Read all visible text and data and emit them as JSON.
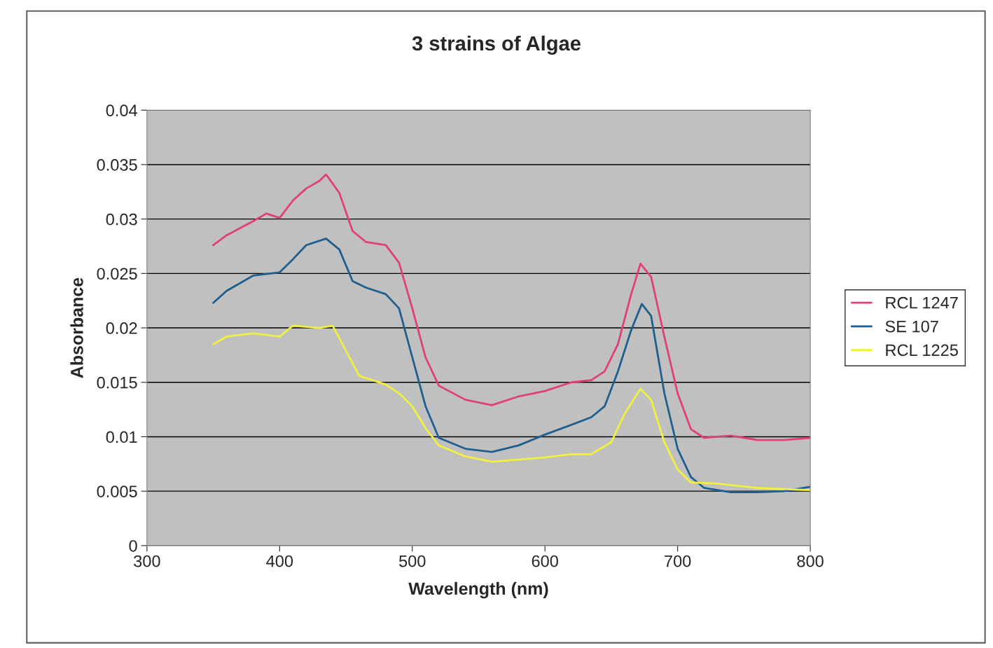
{
  "chart_data": {
    "type": "line",
    "title": "3 strains of Algae",
    "xlabel": "Wavelength (nm)",
    "ylabel": "Absorbance",
    "xlim": [
      300,
      800
    ],
    "xticks": [
      300,
      400,
      500,
      600,
      700,
      800
    ],
    "ylim": [
      0,
      0.04
    ],
    "yticks": [
      0,
      0.005,
      0.01,
      0.015,
      0.02,
      0.025,
      0.03,
      0.035,
      0.04
    ],
    "grid": "y",
    "legend": "right",
    "marker": "none",
    "line_style": "solid",
    "series": [
      {
        "name": "RCL 1247",
        "color": "#e0407a",
        "x": [
          350,
          360,
          380,
          390,
          400,
          410,
          420,
          430,
          435,
          445,
          455,
          465,
          480,
          490,
          500,
          510,
          520,
          540,
          560,
          580,
          600,
          620,
          635,
          645,
          655,
          665,
          672,
          680,
          690,
          700,
          710,
          720,
          740,
          760,
          780,
          800
        ],
        "values": [
          0.0276,
          0.0285,
          0.0298,
          0.0305,
          0.0301,
          0.0317,
          0.0328,
          0.0335,
          0.0341,
          0.0324,
          0.0289,
          0.0279,
          0.0276,
          0.026,
          0.0218,
          0.0173,
          0.0147,
          0.0134,
          0.0129,
          0.0137,
          0.0142,
          0.015,
          0.0152,
          0.016,
          0.0185,
          0.0231,
          0.0259,
          0.0247,
          0.0192,
          0.014,
          0.0107,
          0.0099,
          0.0101,
          0.0097,
          0.0097,
          0.0099
        ]
      },
      {
        "name": "SE 107",
        "color": "#1f5f8f",
        "x": [
          350,
          360,
          380,
          400,
          410,
          420,
          435,
          445,
          455,
          465,
          480,
          490,
          500,
          510,
          520,
          540,
          560,
          580,
          600,
          620,
          635,
          645,
          655,
          665,
          673,
          680,
          690,
          700,
          710,
          720,
          740,
          760,
          780,
          800
        ],
        "values": [
          0.0223,
          0.0234,
          0.0248,
          0.0251,
          0.0263,
          0.0276,
          0.0282,
          0.0272,
          0.0243,
          0.0237,
          0.0231,
          0.0218,
          0.0173,
          0.0128,
          0.0099,
          0.0089,
          0.0086,
          0.0092,
          0.0102,
          0.0111,
          0.0118,
          0.0128,
          0.016,
          0.0198,
          0.0222,
          0.0211,
          0.014,
          0.0089,
          0.0063,
          0.0053,
          0.0049,
          0.0049,
          0.005,
          0.0054
        ]
      },
      {
        "name": "RCL 1225",
        "color": "#f0f040",
        "x": [
          350,
          360,
          380,
          400,
          410,
          430,
          440,
          450,
          460,
          480,
          490,
          500,
          510,
          520,
          540,
          560,
          580,
          600,
          620,
          635,
          650,
          660,
          672,
          680,
          690,
          700,
          710,
          730,
          760,
          780,
          800
        ],
        "values": [
          0.0185,
          0.0192,
          0.0195,
          0.0192,
          0.0202,
          0.02,
          0.0202,
          0.0179,
          0.0156,
          0.0148,
          0.014,
          0.0128,
          0.0108,
          0.0092,
          0.0082,
          0.0077,
          0.0079,
          0.0081,
          0.0084,
          0.0084,
          0.0095,
          0.0121,
          0.0144,
          0.0134,
          0.0095,
          0.007,
          0.0058,
          0.0057,
          0.0053,
          0.0052,
          0.0051
        ]
      }
    ]
  }
}
